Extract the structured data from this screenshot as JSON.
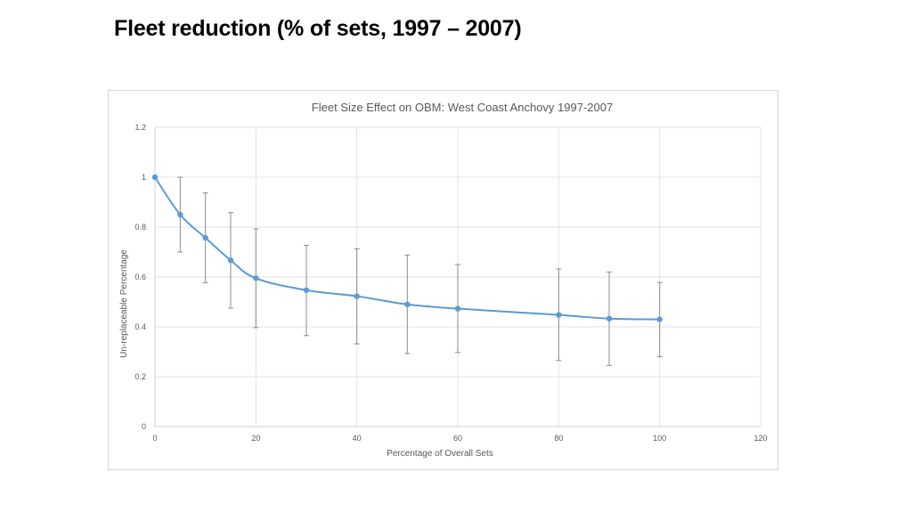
{
  "slide": {
    "title": "Fleet reduction (% of sets, 1997 – 2007)"
  },
  "chart_data": {
    "type": "line",
    "title": "Fleet Size Effect on OBM: West Coast Anchovy 1997-2007",
    "xlabel": "Percentage of Overall Sets",
    "ylabel": "Un-replaceable Percentage",
    "xlim": [
      0,
      120
    ],
    "ylim": [
      0,
      1.2
    ],
    "xticks": [
      0,
      20,
      40,
      60,
      80,
      100,
      120
    ],
    "yticks": [
      0,
      0.2,
      0.4,
      0.6,
      0.8,
      1,
      1.2
    ],
    "grid": true,
    "legend": "none",
    "line_color": "#5b9bd5",
    "series": [
      {
        "x": [
          0,
          5,
          10,
          15,
          20,
          30,
          40,
          50,
          60,
          80,
          90,
          100
        ],
        "y": [
          1.0,
          0.85,
          0.757,
          0.667,
          0.595,
          0.547,
          0.523,
          0.49,
          0.473,
          0.448,
          0.433,
          0.43
        ],
        "error_low": [
          1.0,
          0.7,
          0.577,
          0.475,
          0.397,
          0.365,
          0.332,
          0.293,
          0.297,
          0.265,
          0.245,
          0.28
        ],
        "error_high": [
          1.0,
          1.0,
          0.937,
          0.858,
          0.793,
          0.727,
          0.713,
          0.688,
          0.65,
          0.632,
          0.62,
          0.578
        ]
      }
    ]
  }
}
